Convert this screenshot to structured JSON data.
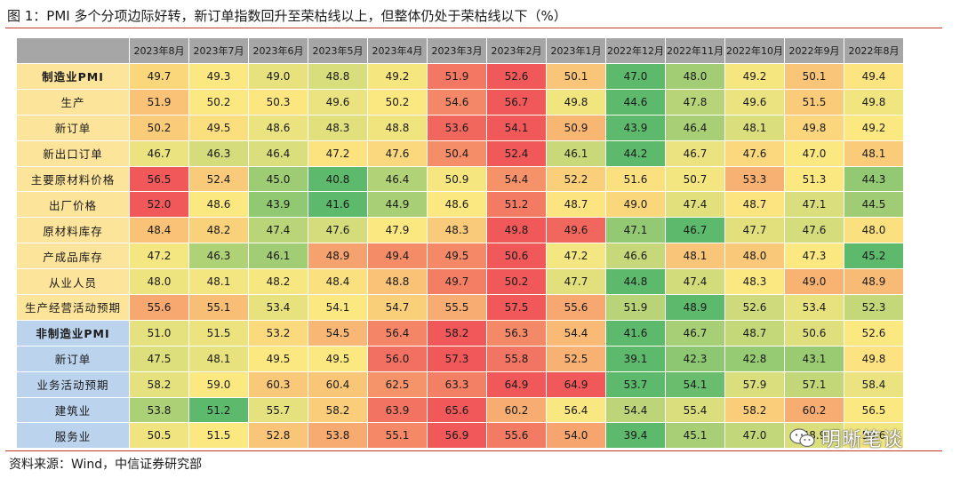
{
  "title": "图 1：PMI 多个分项边际好转，新订单指数回升至荣枯线以上，但整体仍处于荣枯线以下（%）",
  "source": "资料来源：Wind，中信证券研究部",
  "watermark": "明晰笔谈",
  "colors": {
    "red": "#f0585a",
    "yellow": "#fce881",
    "green": "#5db96b",
    "header_bg": "#a6a6a6",
    "mfg_label_bg": "#fde49b",
    "nonmfg_label_bg": "#bcd3ee",
    "rule": "#c0392b"
  },
  "chart_data": {
    "type": "heatmap",
    "title": "图 1：PMI 多个分项边际好转，新订单指数回升至荣枯线以上，但整体仍处于荣枯线以下（%）",
    "columns": [
      "2023年8月",
      "2023年7月",
      "2023年6月",
      "2023年5月",
      "2023年4月",
      "2023年3月",
      "2023年2月",
      "2023年1月",
      "2022年12月",
      "2022年11月",
      "2022年10月",
      "2022年9月",
      "2022年8月"
    ],
    "rows": [
      {
        "label": "制造业PMI",
        "group": "mfg",
        "head": true,
        "values": [
          49.7,
          49.3,
          49.0,
          48.8,
          49.2,
          51.9,
          52.6,
          50.1,
          47.0,
          48.0,
          49.2,
          50.1,
          49.4
        ]
      },
      {
        "label": "生产",
        "group": "mfg",
        "head": false,
        "values": [
          51.9,
          50.2,
          50.3,
          49.6,
          50.2,
          54.6,
          56.7,
          49.8,
          44.6,
          47.8,
          49.6,
          51.5,
          49.8
        ]
      },
      {
        "label": "新订单",
        "group": "mfg",
        "head": false,
        "values": [
          50.2,
          49.5,
          48.6,
          48.3,
          48.8,
          53.6,
          54.1,
          50.9,
          43.9,
          46.4,
          48.1,
          49.8,
          49.2
        ]
      },
      {
        "label": "新出口订单",
        "group": "mfg",
        "head": false,
        "values": [
          46.7,
          46.3,
          46.4,
          47.2,
          47.6,
          50.4,
          52.4,
          46.1,
          44.2,
          46.7,
          47.6,
          47.0,
          48.1
        ]
      },
      {
        "label": "主要原材料价格",
        "group": "mfg",
        "head": false,
        "values": [
          56.5,
          52.4,
          45.0,
          40.8,
          46.4,
          50.9,
          54.4,
          52.2,
          51.6,
          50.7,
          53.3,
          51.3,
          44.3
        ]
      },
      {
        "label": "出厂价格",
        "group": "mfg",
        "head": false,
        "values": [
          52.0,
          48.6,
          43.9,
          41.6,
          44.9,
          48.6,
          51.2,
          48.7,
          49.0,
          47.4,
          48.7,
          47.1,
          44.5
        ]
      },
      {
        "label": "原材料库存",
        "group": "mfg",
        "head": false,
        "values": [
          48.4,
          48.2,
          47.4,
          47.6,
          47.9,
          48.3,
          49.8,
          49.6,
          47.1,
          46.7,
          47.7,
          47.6,
          48.0
        ]
      },
      {
        "label": "产成品库存",
        "group": "mfg",
        "head": false,
        "values": [
          47.2,
          46.3,
          46.1,
          48.9,
          49.4,
          49.5,
          50.6,
          47.2,
          46.6,
          48.1,
          48.0,
          47.3,
          45.2
        ]
      },
      {
        "label": "从业人员",
        "group": "mfg",
        "head": false,
        "values": [
          48.0,
          48.1,
          48.2,
          48.4,
          48.8,
          49.7,
          50.2,
          47.7,
          44.8,
          47.4,
          48.3,
          49.0,
          48.9
        ]
      },
      {
        "label": "生产经营活动预期",
        "group": "mfg",
        "head": false,
        "values": [
          55.6,
          55.1,
          53.4,
          54.1,
          54.7,
          55.5,
          57.5,
          55.6,
          51.9,
          48.9,
          52.6,
          53.4,
          52.3
        ]
      },
      {
        "label": "非制造业PMI",
        "group": "nonmfg",
        "head": true,
        "values": [
          51.0,
          51.5,
          53.2,
          54.5,
          56.4,
          58.2,
          56.3,
          54.4,
          41.6,
          46.7,
          48.7,
          50.6,
          52.6
        ]
      },
      {
        "label": "新订单",
        "group": "nonmfg",
        "head": false,
        "values": [
          47.5,
          48.1,
          49.5,
          49.5,
          56.0,
          57.3,
          55.8,
          52.5,
          39.1,
          42.3,
          42.8,
          43.1,
          49.8
        ]
      },
      {
        "label": "业务活动预期",
        "group": "nonmfg",
        "head": false,
        "values": [
          58.2,
          59.0,
          60.3,
          60.4,
          62.5,
          63.3,
          64.9,
          64.9,
          53.7,
          54.1,
          57.9,
          57.1,
          58.4
        ]
      },
      {
        "label": "建筑业",
        "group": "nonmfg",
        "head": false,
        "values": [
          53.8,
          51.2,
          55.7,
          58.2,
          63.9,
          65.6,
          60.2,
          56.4,
          54.4,
          55.4,
          58.2,
          60.2,
          56.5
        ]
      },
      {
        "label": "服务业",
        "group": "nonmfg",
        "head": false,
        "values": [
          50.5,
          51.5,
          52.8,
          53.8,
          55.1,
          56.9,
          55.6,
          54.0,
          39.4,
          45.1,
          47.0,
          48.9,
          50.6
        ]
      }
    ]
  }
}
